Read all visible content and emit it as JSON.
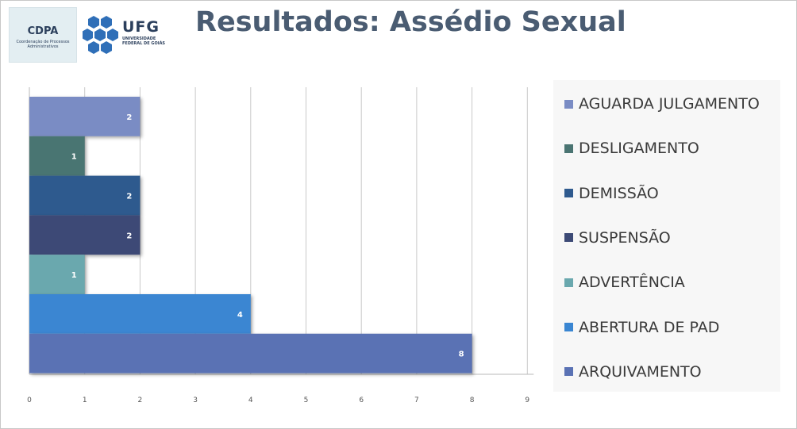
{
  "header": {
    "title": "Resultados: Assédio Sexual",
    "cdpa_logo": {
      "name": "CDPA",
      "subtitle": "Coordenação de Processos Administrativos"
    },
    "ufg_logo": {
      "name": "UFG",
      "subtitle": "UNIVERSIDADE FEDERAL DE GOIÁS"
    }
  },
  "chart_data": {
    "type": "bar",
    "orientation": "horizontal",
    "title": "",
    "xlabel": "",
    "ylabel": "",
    "xlim": [
      0,
      9
    ],
    "x_ticks": [
      "0",
      "1",
      "2",
      "3",
      "4",
      "5",
      "6",
      "7",
      "8",
      "9"
    ],
    "grid": "vertical",
    "legend_position": "right",
    "series": [
      {
        "name": "AGUARDA JULGAMENTO",
        "value": 2,
        "color": "#7a8cc4"
      },
      {
        "name": "DESLIGAMENTO",
        "value": 1,
        "color": "#4a7472"
      },
      {
        "name": "DEMISSÃO",
        "value": 2,
        "color": "#2f5a8e"
      },
      {
        "name": "SUSPENSÃO",
        "value": 2,
        "color": "#3d4a76"
      },
      {
        "name": "ADVERTÊNCIA",
        "value": 1,
        "color": "#6aa8ae"
      },
      {
        "name": "ABERTURA DE PAD",
        "value": 4,
        "color": "#3a86d2"
      },
      {
        "name": "ARQUIVAMENTO",
        "value": 8,
        "color": "#5a72b4"
      }
    ]
  }
}
